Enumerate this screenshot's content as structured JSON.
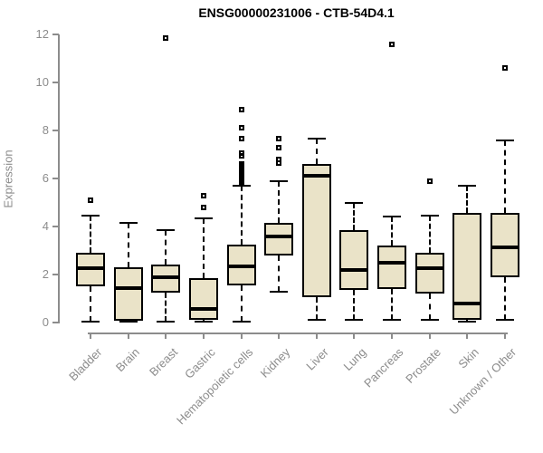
{
  "title": "ENSG00000231006 - CTB-54D4.1",
  "chart_data": {
    "type": "boxplot",
    "title": "ENSG00000231006 - CTB-54D4.1",
    "xlabel": "",
    "ylabel": "Expression",
    "ylim": [
      0,
      12
    ],
    "yticks": [
      0,
      2,
      4,
      6,
      8,
      10,
      12
    ],
    "grid": false,
    "legend": "none",
    "box_fill_color": "#eae3c8",
    "box_line_color": "#000000",
    "axis_color": "#8c8c8c",
    "categories": [
      "Bladder",
      "Brain",
      "Breast",
      "Gastric",
      "Hematopoietic cells",
      "Kidney",
      "Liver",
      "Lung",
      "Pancreas",
      "Prostate",
      "Skin",
      "Unknown / Other"
    ],
    "series": [
      {
        "category": "Bladder",
        "whisker_low": 0.05,
        "q1": 1.5,
        "median": 2.25,
        "q3": 2.9,
        "whisker_high": 4.45,
        "outliers": [
          5.1
        ]
      },
      {
        "category": "Brain",
        "whisker_low": 0.02,
        "q1": 0.06,
        "median": 1.45,
        "q3": 2.3,
        "whisker_high": 4.15,
        "outliers": []
      },
      {
        "category": "Breast",
        "whisker_low": 0.05,
        "q1": 1.25,
        "median": 1.9,
        "q3": 2.4,
        "whisker_high": 3.85,
        "outliers": [
          11.85
        ]
      },
      {
        "category": "Gastric",
        "whisker_low": 0.02,
        "q1": 0.1,
        "median": 0.55,
        "q3": 1.85,
        "whisker_high": 4.35,
        "outliers": [
          4.8,
          5.3
        ]
      },
      {
        "category": "Hematopoietic cells",
        "whisker_low": 0.05,
        "q1": 1.55,
        "median": 2.35,
        "q3": 3.25,
        "whisker_high": 5.7,
        "outliers": [
          5.8,
          5.84,
          5.88,
          5.92,
          5.96,
          6.0,
          6.05,
          6.1,
          6.15,
          6.22,
          6.3,
          6.4,
          6.52,
          6.62,
          6.95,
          7.05,
          7.65,
          8.1,
          8.85
        ]
      },
      {
        "category": "Kidney",
        "whisker_low": 1.3,
        "q1": 2.8,
        "median": 3.6,
        "q3": 4.15,
        "whisker_high": 5.9,
        "outliers": [
          6.65,
          6.8,
          7.3,
          7.65
        ]
      },
      {
        "category": "Liver",
        "whisker_low": 0.1,
        "q1": 1.05,
        "median": 6.1,
        "q3": 6.6,
        "whisker_high": 7.65,
        "outliers": []
      },
      {
        "category": "Lung",
        "whisker_low": 0.1,
        "q1": 1.35,
        "median": 2.2,
        "q3": 3.85,
        "whisker_high": 5.0,
        "outliers": []
      },
      {
        "category": "Pancreas",
        "whisker_low": 0.1,
        "q1": 1.4,
        "median": 2.5,
        "q3": 3.2,
        "whisker_high": 4.4,
        "outliers": [
          11.6
        ]
      },
      {
        "category": "Prostate",
        "whisker_low": 0.1,
        "q1": 1.2,
        "median": 2.25,
        "q3": 2.9,
        "whisker_high": 4.45,
        "outliers": [
          5.9
        ]
      },
      {
        "category": "Skin",
        "whisker_low": 0.02,
        "q1": 0.1,
        "median": 0.78,
        "q3": 4.55,
        "whisker_high": 5.7,
        "outliers": []
      },
      {
        "category": "Unknown / Other",
        "whisker_low": 0.1,
        "q1": 1.9,
        "median": 3.15,
        "q3": 4.55,
        "whisker_high": 7.6,
        "outliers": [
          10.6
        ]
      }
    ]
  }
}
